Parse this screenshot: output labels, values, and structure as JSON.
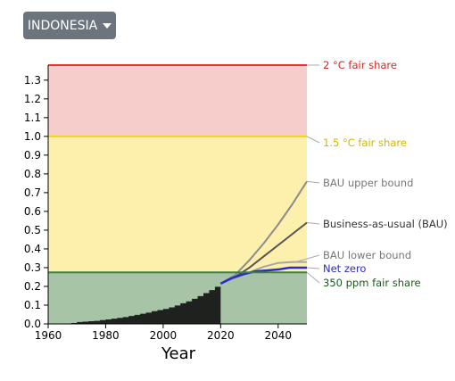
{
  "dropdown": {
    "label": "INDONESIA"
  },
  "chart_data": {
    "type": "line",
    "xlabel": "Year",
    "xlim": [
      1960,
      2050
    ],
    "ylim": [
      0,
      1.38
    ],
    "x_ticks": [
      1960,
      1980,
      2000,
      2020,
      2040
    ],
    "y_ticks": [
      "0.0",
      "0.1",
      "0.2",
      "0.3",
      "0.4",
      "0.5",
      "0.6",
      "0.7",
      "0.8",
      "0.9",
      "1.0",
      "1.1",
      "1.2",
      "1.3"
    ],
    "thresholds": [
      {
        "name": "2 °C fair share",
        "value": 1.38,
        "color": "#e8322b",
        "band_color": "#f7cdcb"
      },
      {
        "name": "1.5 °C fair share",
        "value": 1.0,
        "color": "#f2d21e",
        "band_color": "#fdf0ad"
      },
      {
        "name": "350 ppm fair share",
        "value": 0.275,
        "color": "#3f7f3f",
        "band_color": "#a7c4a6"
      }
    ],
    "historical": {
      "x": [
        1960,
        1962,
        1964,
        1966,
        1968,
        1970,
        1972,
        1974,
        1976,
        1978,
        1980,
        1982,
        1984,
        1986,
        1988,
        1990,
        1992,
        1994,
        1996,
        1998,
        2000,
        2002,
        2004,
        2006,
        2008,
        2010,
        2012,
        2014,
        2016,
        2018,
        2020
      ],
      "y": [
        0.0,
        0.0,
        0.0,
        0.0,
        0.005,
        0.01,
        0.012,
        0.014,
        0.016,
        0.02,
        0.024,
        0.028,
        0.032,
        0.036,
        0.042,
        0.048,
        0.054,
        0.06,
        0.068,
        0.074,
        0.08,
        0.088,
        0.098,
        0.11,
        0.12,
        0.134,
        0.148,
        0.164,
        0.18,
        0.198,
        0.215
      ]
    },
    "series": [
      {
        "name": "BAU upper bound",
        "color": "#8c8c8c",
        "x": [
          2020,
          2025,
          2030,
          2035,
          2040,
          2045,
          2050
        ],
        "y": [
          0.215,
          0.26,
          0.34,
          0.43,
          0.53,
          0.64,
          0.76
        ]
      },
      {
        "name": "Business-as-usual (BAU)",
        "color": "#555555",
        "x": [
          2020,
          2025,
          2030,
          2035,
          2040,
          2045,
          2050
        ],
        "y": [
          0.215,
          0.25,
          0.3,
          0.36,
          0.42,
          0.48,
          0.54
        ]
      },
      {
        "name": "BAU lower bound",
        "color": "#a6a6a6",
        "x": [
          2020,
          2025,
          2030,
          2035,
          2040,
          2045,
          2050
        ],
        "y": [
          0.215,
          0.245,
          0.275,
          0.305,
          0.325,
          0.33,
          0.33
        ]
      },
      {
        "name": "Net zero",
        "color": "#2a2ad0",
        "x": [
          2020,
          2024,
          2028,
          2032,
          2036,
          2040,
          2044,
          2050
        ],
        "y": [
          0.215,
          0.245,
          0.265,
          0.28,
          0.285,
          0.29,
          0.3,
          0.3
        ]
      }
    ]
  }
}
